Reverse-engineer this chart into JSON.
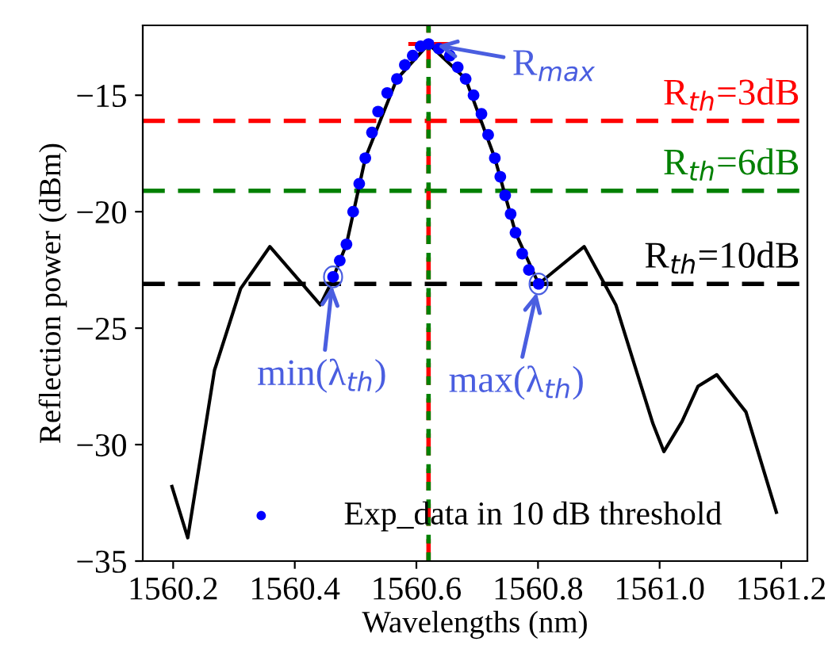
{
  "chart_data": {
    "type": "line",
    "xlabel": "Wavelengths (nm)",
    "ylabel": "Reflection power (dBm)",
    "xlim": [
      1560.15,
      1561.243
    ],
    "ylim": [
      -35,
      -12
    ],
    "xticks": [
      {
        "value": 1560.2,
        "label": "1560.2"
      },
      {
        "value": 1560.4,
        "label": "1560.4"
      },
      {
        "value": 1560.6,
        "label": "1560.6"
      },
      {
        "value": 1560.8,
        "label": "1560.8"
      },
      {
        "value": 1561.0,
        "label": "1561.0"
      },
      {
        "value": 1561.2,
        "label": "1561.2"
      }
    ],
    "yticks": [
      {
        "value": -35,
        "label": "−35"
      },
      {
        "value": -30,
        "label": "−30"
      },
      {
        "value": -25,
        "label": "−25"
      },
      {
        "value": -20,
        "label": "−20"
      },
      {
        "value": -15,
        "label": "−15"
      }
    ],
    "grid": false,
    "legend": "bottom",
    "series": [
      {
        "color": "#000000",
        "x": [
          1560.198,
          1560.224,
          1560.268,
          1560.311,
          1560.359,
          1560.442,
          1560.459,
          1560.485,
          1560.516,
          1560.568,
          1560.62,
          1560.681,
          1560.729,
          1560.763,
          1560.801,
          1560.876,
          1560.928,
          1560.959,
          1560.989,
          1561.007,
          1561.037,
          1561.063,
          1561.094,
          1561.142,
          1561.192
        ],
        "values": [
          -31.8,
          -34.0,
          -26.8,
          -23.3,
          -21.5,
          -24.0,
          -23.1,
          -21.4,
          -17.7,
          -14.3,
          -12.8,
          -14.3,
          -17.7,
          -20.9,
          -23.1,
          -21.5,
          -24.0,
          -26.6,
          -29.1,
          -30.3,
          -29.0,
          -27.5,
          -27.0,
          -28.6,
          -32.9
        ]
      },
      {
        "type": "scatter",
        "name": "Exp_data in 10 dB threshold",
        "color": "#0000ff",
        "marker": "circle",
        "x": [
          1560.463,
          1560.474,
          1560.485,
          1560.496,
          1560.506,
          1560.516,
          1560.527,
          1560.537,
          1560.552,
          1560.568,
          1560.581,
          1560.594,
          1560.607,
          1560.62,
          1560.637,
          1560.655,
          1560.668,
          1560.681,
          1560.694,
          1560.707,
          1560.718,
          1560.729,
          1560.738,
          1560.746,
          1560.755,
          1560.763,
          1560.774,
          1560.785,
          1560.801
        ],
        "values": [
          -22.8,
          -22.1,
          -21.4,
          -20.0,
          -18.8,
          -17.7,
          -16.6,
          -15.7,
          -14.9,
          -14.3,
          -13.7,
          -13.3,
          -12.9,
          -12.8,
          -13.0,
          -13.3,
          -13.8,
          -14.3,
          -15.0,
          -15.8,
          -16.7,
          -17.7,
          -18.5,
          -19.3,
          -20.1,
          -20.9,
          -21.8,
          -22.5,
          -23.1
        ]
      },
      {
        "type": "line",
        "color": "#ff0000",
        "x": [
          1560.59,
          1560.65
        ],
        "values": [
          -12.8,
          -12.8
        ]
      }
    ],
    "ref_lines": [
      {
        "axis": "y",
        "value": -16.1,
        "color": "#ff0000",
        "line_style": "dashed"
      },
      {
        "axis": "y",
        "value": -19.1,
        "color": "#008000",
        "line_style": "dashed"
      },
      {
        "axis": "y",
        "value": -23.1,
        "color": "#000000",
        "line_style": "dashed"
      },
      {
        "axis": "x",
        "value": 1560.62,
        "color": "#ff0000",
        "line_style": "dashed"
      },
      {
        "axis": "x",
        "value": 1560.62,
        "color": "#008000",
        "line_style": "dotted"
      }
    ],
    "annotations": [
      {
        "text": "R$_{max}$",
        "x": 1560.62,
        "y": -12.8
      },
      {
        "text": "min(λ$_{th}$)",
        "x": 1560.463,
        "y": -22.8
      },
      {
        "text": "max(λ$_{th}$)",
        "x": 1560.801,
        "y": -23.1
      },
      "R$_{th}$=3dB",
      "R$_{th}$=6dB",
      "R$_{th}$=10dB"
    ]
  }
}
